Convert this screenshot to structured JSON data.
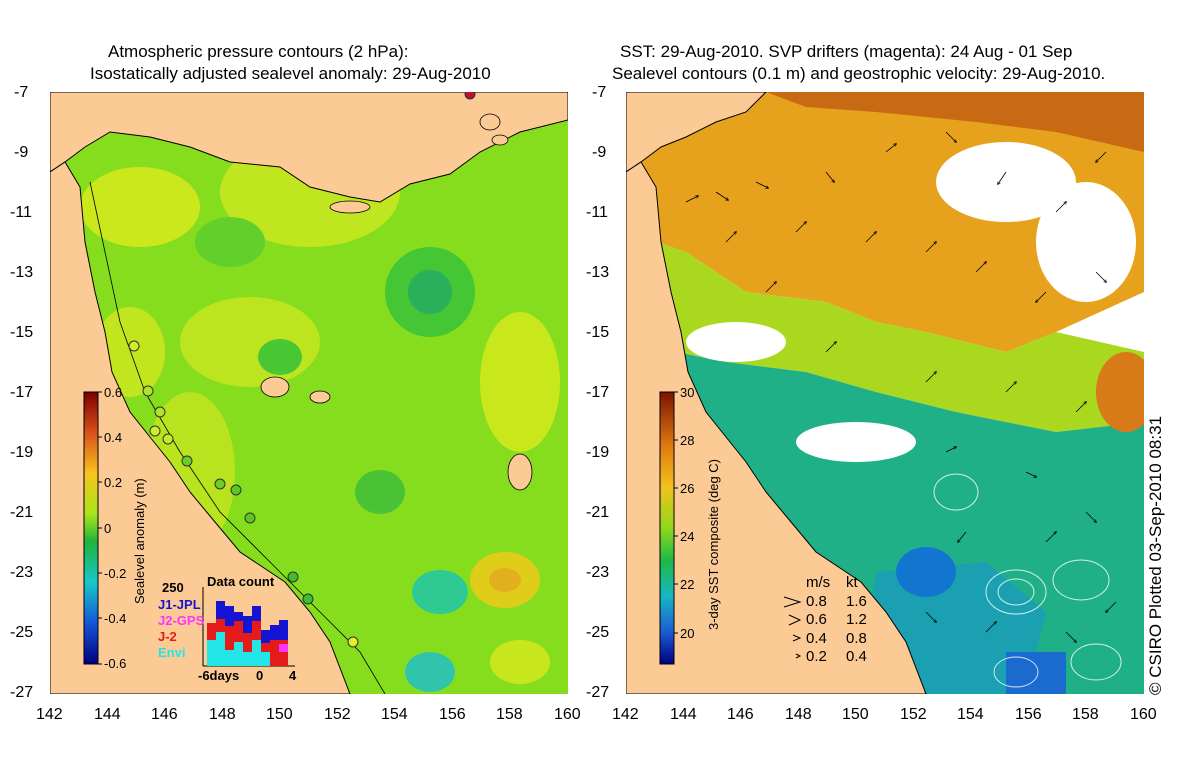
{
  "left": {
    "title_line1": "Atmospheric pressure contours (2 hPa):",
    "title_line2": "Isostatically adjusted sealevel anomaly: 29-Aug-2010",
    "colorbar_label": "Sealevel anomaly (m)",
    "colorbar_ticks": [
      "0.6",
      "0.4",
      "0.2",
      "0",
      "-0.2",
      "-0.4",
      "-0.6"
    ],
    "data_count": {
      "max_label": "250",
      "title": "Data count",
      "missions": [
        {
          "name": "J1-JPL",
          "color": "#1414d2"
        },
        {
          "name": "J2-GPS",
          "color": "#ff33ff"
        },
        {
          "name": "J-2",
          "color": "#e51a1a"
        },
        {
          "name": "Envi",
          "color": "#22e6e6"
        }
      ],
      "x_label": "-6days",
      "x_tick_0": "0",
      "x_tick_4": "4"
    }
  },
  "right": {
    "title_line1": "SST: 29-Aug-2010. SVP drifters (magenta): 24 Aug - 01 Sep",
    "title_line2": "Sealevel contours (0.1 m) and geostrophic velocity: 29-Aug-2010.",
    "colorbar_label": "3-day SST composite (deg C)",
    "colorbar_ticks": [
      "30",
      "28",
      "26",
      "24",
      "22",
      "20"
    ],
    "velocity_legend": {
      "header_ms": "m/s",
      "header_kt": "kt",
      "rows": [
        {
          "ms": "0.8",
          "kt": "1.6"
        },
        {
          "ms": "0.6",
          "kt": "1.2"
        },
        {
          "ms": "0.4",
          "kt": "0.8"
        },
        {
          "ms": "0.2",
          "kt": "0.4"
        }
      ]
    }
  },
  "axes": {
    "lat_labels": [
      "-7",
      "-9",
      "-11",
      "-13",
      "-15",
      "-17",
      "-19",
      "-21",
      "-23",
      "-25",
      "-27"
    ],
    "lon_labels": [
      "142",
      "144",
      "146",
      "148",
      "150",
      "152",
      "154",
      "156",
      "158",
      "160"
    ]
  },
  "credit": "© CSIRO Plotted 03-Sep-2010 08:31",
  "colors": {
    "land": "#fccb95",
    "ocean_base": "#7fdc1c",
    "sst_cold": "#1ea6a0",
    "sst_warm": "#e7a214"
  }
}
